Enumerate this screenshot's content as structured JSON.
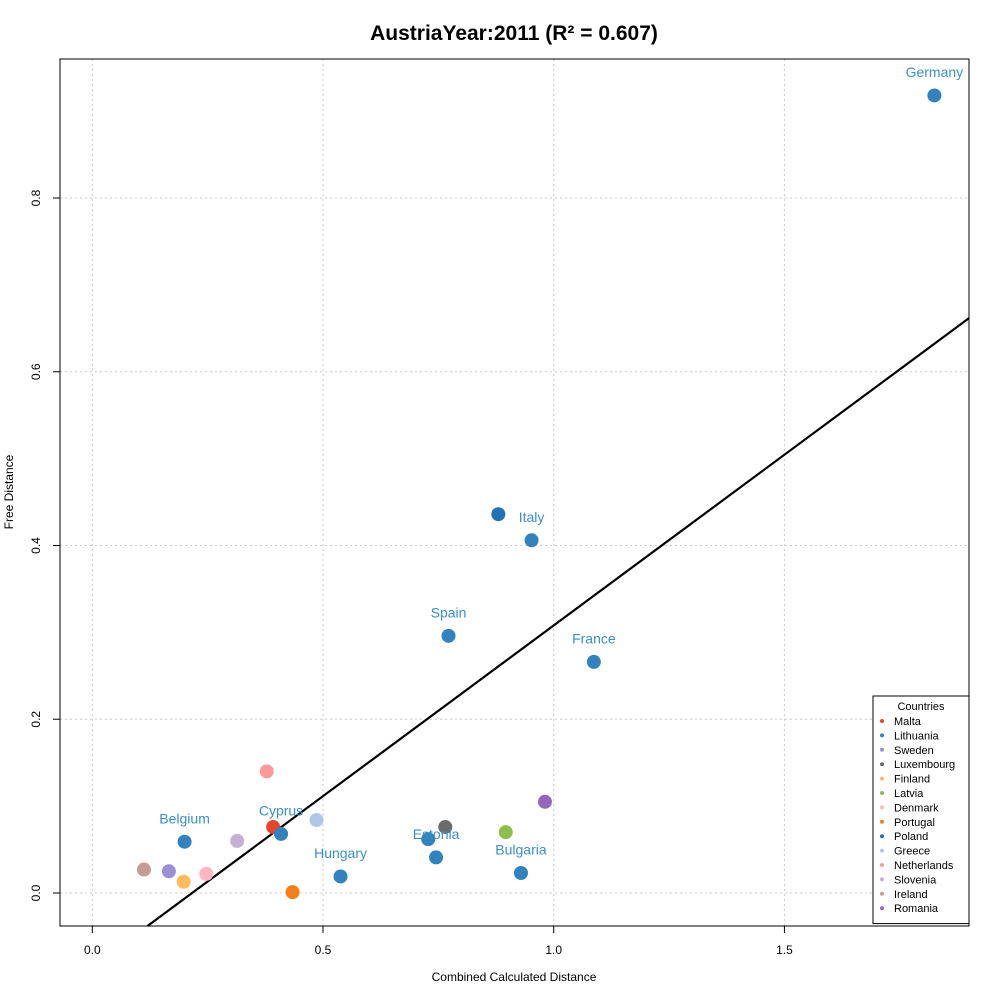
{
  "chart_data": {
    "type": "scatter",
    "title": "AustriaYear:2011 (R² = 0.607)",
    "xlabel": "Combined Calculated Distance",
    "ylabel": "Free Distance",
    "xlim": [
      -0.07,
      1.9
    ],
    "ylim": [
      -0.038,
      0.96
    ],
    "xticks": [
      {
        "value": 0.0,
        "label": "0.0"
      },
      {
        "value": 0.5,
        "label": "0.5"
      },
      {
        "value": 1.0,
        "label": "1.0"
      },
      {
        "value": 1.5,
        "label": "1.5"
      }
    ],
    "yticks": [
      {
        "value": 0.0,
        "label": "0.0"
      },
      {
        "value": 0.2,
        "label": "0.2"
      },
      {
        "value": 0.4,
        "label": "0.4"
      },
      {
        "value": 0.6,
        "label": "0.6"
      },
      {
        "value": 0.8,
        "label": "0.8"
      }
    ],
    "grid": true,
    "regression_line": {
      "slope": 0.393,
      "intercept": -0.085
    },
    "label_color": "#3A8FC7",
    "points": [
      {
        "x": 1.825,
        "y": 0.918,
        "color": "#3182BD"
      },
      {
        "x": 0.88,
        "y": 0.436,
        "color": "#2171B5"
      },
      {
        "x": 0.952,
        "y": 0.406,
        "color": "#3182BD"
      },
      {
        "x": 0.772,
        "y": 0.296,
        "color": "#3182BD"
      },
      {
        "x": 1.087,
        "y": 0.266,
        "color": "#3182BD"
      },
      {
        "x": 0.378,
        "y": 0.14,
        "color": "#FC9A9A"
      },
      {
        "x": 0.981,
        "y": 0.105,
        "color": "#9467BD"
      },
      {
        "x": 0.392,
        "y": 0.076,
        "color": "#E6452B"
      },
      {
        "x": 0.765,
        "y": 0.076,
        "color": "#6B6B6B"
      },
      {
        "x": 0.486,
        "y": 0.084,
        "color": "#AEC7E8"
      },
      {
        "x": 0.409,
        "y": 0.068,
        "color": "#3182BD"
      },
      {
        "x": 0.896,
        "y": 0.07,
        "color": "#8CBF4B"
      },
      {
        "x": 0.2,
        "y": 0.059,
        "color": "#3182BD"
      },
      {
        "x": 0.314,
        "y": 0.06,
        "color": "#C5B0D5"
      },
      {
        "x": 0.728,
        "y": 0.062,
        "color": "#3182BD"
      },
      {
        "x": 0.745,
        "y": 0.041,
        "color": "#3182BD"
      },
      {
        "x": 0.538,
        "y": 0.019,
        "color": "#3182BD"
      },
      {
        "x": 0.929,
        "y": 0.023,
        "color": "#3182BD"
      },
      {
        "x": 0.112,
        "y": 0.027,
        "color": "#C49C94"
      },
      {
        "x": 0.166,
        "y": 0.025,
        "color": "#9C8FD6"
      },
      {
        "x": 0.247,
        "y": 0.022,
        "color": "#FFB6C1"
      },
      {
        "x": 0.198,
        "y": 0.013,
        "color": "#FDBB5C"
      },
      {
        "x": 0.434,
        "y": 0.001,
        "color": "#F57F17"
      }
    ],
    "annotations": [
      {
        "text": "Germany",
        "x": 1.825,
        "y": 0.945
      },
      {
        "text": "Italy",
        "x": 0.952,
        "y": 0.433
      },
      {
        "text": "Spain",
        "x": 0.772,
        "y": 0.323
      },
      {
        "text": "France",
        "x": 1.087,
        "y": 0.293
      },
      {
        "text": "Belgium",
        "x": 0.2,
        "y": 0.086
      },
      {
        "text": "Cyprus",
        "x": 0.409,
        "y": 0.095
      },
      {
        "text": "Estonia",
        "x": 0.745,
        "y": 0.068
      },
      {
        "text": "Hungary",
        "x": 0.538,
        "y": 0.046
      },
      {
        "text": "Bulgaria",
        "x": 0.929,
        "y": 0.05
      }
    ],
    "legend": {
      "title": "Countries",
      "position": "bottom-right",
      "entries": [
        {
          "name": "Malta",
          "color": "#E6452B"
        },
        {
          "name": "Lithuania",
          "color": "#3182BD"
        },
        {
          "name": "Sweden",
          "color": "#9C8FD6"
        },
        {
          "name": "Luxembourg",
          "color": "#6B6B6B"
        },
        {
          "name": "Finland",
          "color": "#FDBB5C"
        },
        {
          "name": "Latvia",
          "color": "#8CBF4B"
        },
        {
          "name": "Denmark",
          "color": "#FFB6C1"
        },
        {
          "name": "Portugal",
          "color": "#F57F17"
        },
        {
          "name": "Poland",
          "color": "#2171B5"
        },
        {
          "name": "Greece",
          "color": "#AEC7E8"
        },
        {
          "name": "Netherlands",
          "color": "#FC9A9A"
        },
        {
          "name": "Slovenia",
          "color": "#C5B0D5"
        },
        {
          "name": "Ireland",
          "color": "#C49C94"
        },
        {
          "name": "Romania",
          "color": "#9467BD"
        }
      ]
    }
  }
}
